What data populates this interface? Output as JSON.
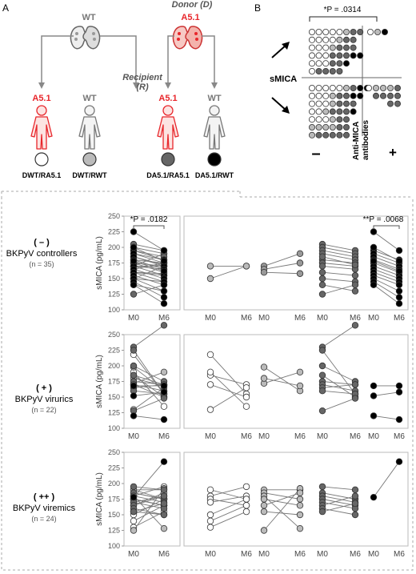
{
  "panel_a": {
    "letter": "A",
    "donor_label": "Donor (D)",
    "recipient_label_line1": "Recipient",
    "recipient_label_line2": "(R)",
    "donors": [
      "WT",
      "A5.1"
    ],
    "recipients": [
      "A5.1",
      "WT",
      "A5.1",
      "WT"
    ],
    "groups": [
      "DWT/RA5.1",
      "DWT/RWT",
      "DA5.1/RA5.1",
      "DA5.1/RWT"
    ],
    "colors": {
      "red": "#e8262b",
      "group1": "#ffffff",
      "group2": "#bbbbbb",
      "group3": "#666666",
      "group4": "#000000"
    }
  },
  "panel_b": {
    "letter": "B",
    "pvalue": "*P = .0314",
    "y_label": "sMICA",
    "x_label_line1": "Anti-MICA",
    "x_label_line2": "antibodies",
    "minus": "–",
    "plus": "+"
  },
  "rows": [
    {
      "symbol": "( – )",
      "name": "BKPyV controllers",
      "n": "(n = 35)"
    },
    {
      "symbol": "( + )",
      "name": "BKPyV virurics",
      "n": "(n = 22)"
    },
    {
      "symbol": "( ++ )",
      "name": "BKPyV viremics",
      "n": "(n = 24)"
    }
  ],
  "chart_data": {
    "type": "scatter",
    "description_units": "sMICA (pg/mL), paired M0 vs M6",
    "ylabel": "sMICA (pg/mL)",
    "xticks": [
      "M0",
      "M6"
    ],
    "rows": [
      {
        "ylim": [
          100,
          250
        ],
        "yticks": [
          100,
          125,
          150,
          175,
          200,
          225,
          250
        ],
        "pooled_annotation": "*P = .0182",
        "groups": [
          {
            "color": "#bbbbbb",
            "pairs": [
              [
                170,
                170
              ],
              [
                150,
                170
              ]
            ]
          },
          {
            "color": "#999999",
            "pairs": [
              [
                170,
                190
              ],
              [
                165,
                175
              ],
              [
                160,
                158
              ]
            ]
          },
          {
            "color": "#666666",
            "pairs": [
              [
                205,
                195
              ],
              [
                200,
                190
              ],
              [
                195,
                185
              ],
              [
                190,
                180
              ],
              [
                180,
                175
              ],
              [
                175,
                170
              ],
              [
                170,
                165
              ],
              [
                160,
                155
              ],
              [
                150,
                145
              ],
              [
                140,
                130
              ],
              [
                125,
                140
              ],
              [
                185,
                172
              ]
            ]
          },
          {
            "color": "#000000",
            "annotation": "**P = .0068",
            "pairs": [
              [
                225,
                195
              ],
              [
                195,
                180
              ],
              [
                190,
                175
              ],
              [
                185,
                170
              ],
              [
                180,
                165
              ],
              [
                175,
                160
              ],
              [
                170,
                155
              ],
              [
                165,
                150
              ],
              [
                160,
                145
              ],
              [
                155,
                140
              ],
              [
                150,
                130
              ],
              [
                145,
                120
              ],
              [
                140,
                110
              ],
              [
                200,
                178
              ],
              [
                178,
                162
              ]
            ]
          }
        ]
      },
      {
        "ylim": [
          100,
          250
        ],
        "yticks": [
          100,
          125,
          150,
          175,
          200,
          225,
          250
        ],
        "groups": [
          {
            "color": "#ffffff",
            "pairs": [
              [
                218,
                155
              ],
              [
                185,
                170
              ],
              [
                170,
                150
              ],
              [
                130,
                165
              ],
              [
                190,
                135
              ]
            ]
          },
          {
            "color": "#bbbbbb",
            "pairs": [
              [
                198,
                160
              ],
              [
                172,
                190
              ],
              [
                180,
                168
              ]
            ]
          },
          {
            "color": "#666666",
            "pairs": [
              [
                230,
                265
              ],
              [
                225,
                155
              ],
              [
                200,
                175
              ],
              [
                185,
                150
              ],
              [
                175,
                170
              ],
              [
                170,
                160
              ],
              [
                165,
                170
              ],
              [
                160,
                155
              ],
              [
                128,
                148
              ]
            ]
          },
          {
            "color": "#000000",
            "pairs": [
              [
                168,
                168
              ],
              [
                152,
                158
              ],
              [
                120,
                114
              ]
            ]
          }
        ]
      },
      {
        "ylim": [
          100,
          250
        ],
        "yticks": [
          100,
          125,
          150,
          175,
          200,
          225,
          250
        ],
        "groups": [
          {
            "color": "#ffffff",
            "pairs": [
              [
                190,
                175
              ],
              [
                180,
                195
              ],
              [
                175,
                165
              ],
              [
                170,
                180
              ],
              [
                150,
                175
              ],
              [
                140,
                165
              ],
              [
                130,
                155
              ]
            ]
          },
          {
            "color": "#bbbbbb",
            "pairs": [
              [
                190,
                190
              ],
              [
                185,
                175
              ],
              [
                180,
                128
              ],
              [
                175,
                165
              ],
              [
                125,
                192
              ],
              [
                165,
                185
              ],
              [
                155,
                150
              ]
            ]
          },
          {
            "color": "#666666",
            "pairs": [
              [
                195,
                190
              ],
              [
                185,
                175
              ],
              [
                180,
                170
              ],
              [
                175,
                165
              ],
              [
                170,
                160
              ],
              [
                165,
                180
              ],
              [
                160,
                150
              ],
              [
                155,
                168
              ]
            ]
          },
          {
            "color": "#000000",
            "pairs": [
              [
                178,
                235
              ]
            ]
          }
        ]
      }
    ]
  }
}
